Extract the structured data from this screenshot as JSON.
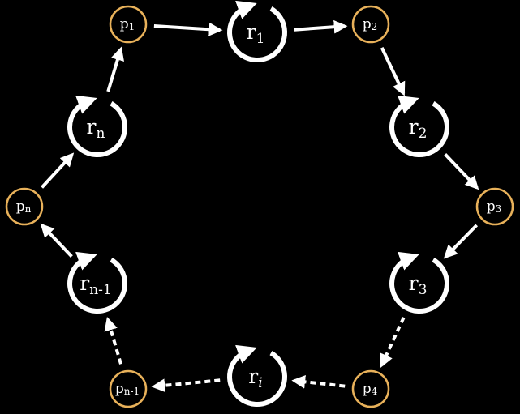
{
  "colors": {
    "background": "#000000",
    "place_stroke": "#E8B15A",
    "foreground": "#ffffff"
  },
  "places": [
    {
      "id": "p1",
      "base": "p",
      "sub": "1"
    },
    {
      "id": "p2",
      "base": "p",
      "sub": "2"
    },
    {
      "id": "p3",
      "base": "p",
      "sub": "3"
    },
    {
      "id": "p4",
      "base": "p",
      "sub": "4"
    },
    {
      "id": "pn-1",
      "base": "p",
      "sub": "n-1"
    },
    {
      "id": "pn",
      "base": "p",
      "sub": "n"
    }
  ],
  "resources": [
    {
      "id": "r1",
      "base": "r",
      "sub": "1"
    },
    {
      "id": "r2",
      "base": "r",
      "sub": "2"
    },
    {
      "id": "r3",
      "base": "r",
      "sub": "3"
    },
    {
      "id": "ri",
      "base": "r",
      "sub": "i"
    },
    {
      "id": "rn-1",
      "base": "r",
      "sub": "n-1"
    },
    {
      "id": "rn",
      "base": "r",
      "sub": "n"
    }
  ],
  "edges": [
    {
      "from": "p1",
      "to": "r1",
      "style": "solid"
    },
    {
      "from": "r1",
      "to": "p2",
      "style": "solid"
    },
    {
      "from": "p2",
      "to": "r2",
      "style": "solid"
    },
    {
      "from": "r2",
      "to": "p3",
      "style": "solid"
    },
    {
      "from": "p3",
      "to": "r3",
      "style": "solid"
    },
    {
      "from": "r3",
      "to": "p4",
      "style": "dashed"
    },
    {
      "from": "p4",
      "to": "ri",
      "style": "dashed"
    },
    {
      "from": "ri",
      "to": "pn-1",
      "style": "dashed"
    },
    {
      "from": "pn-1",
      "to": "rn-1",
      "style": "dashed"
    },
    {
      "from": "rn-1",
      "to": "pn",
      "style": "solid"
    },
    {
      "from": "pn",
      "to": "rn",
      "style": "solid"
    },
    {
      "from": "rn",
      "to": "p1",
      "style": "solid"
    }
  ]
}
